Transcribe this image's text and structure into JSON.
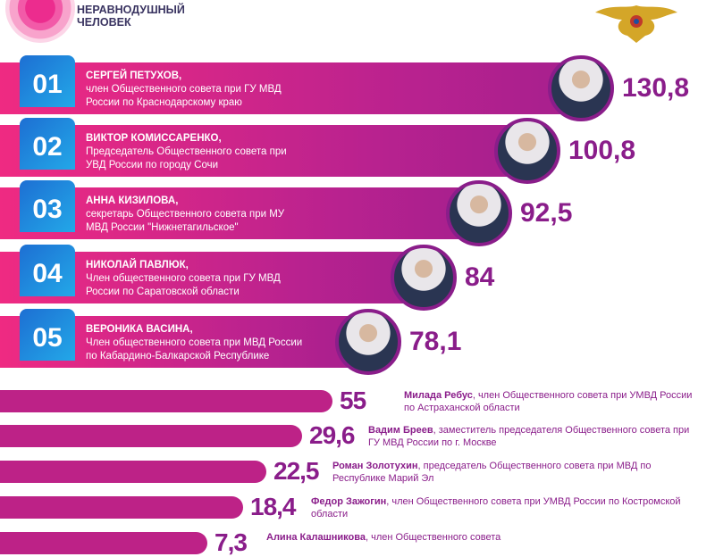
{
  "brand": {
    "line1": "НЕРАВНОДУШНЫЙ",
    "line2": "ЧЕЛОВЕК"
  },
  "colors": {
    "bar": "#bd2287",
    "value": "#8a1d8a",
    "number_box": "#1d8fe0",
    "brand_text": "#3a3461"
  },
  "chart_data": {
    "type": "bar",
    "orientation": "horizontal",
    "top": [
      {
        "rank": "01",
        "name": "СЕРГЕЙ ПЕТУХОВ,",
        "line1": "член Общественного совета при ГУ МВД",
        "line2": "России по Краснодарскому краю",
        "value": 130.8,
        "label": "130,8"
      },
      {
        "rank": "02",
        "name": "ВИКТОР КОМИССАРЕНКО,",
        "line1": "Председатель Общественного совета при",
        "line2": "УВД России по городу Сочи",
        "value": 100.8,
        "label": "100,8"
      },
      {
        "rank": "03",
        "name": "АННА КИЗИЛОВА,",
        "line1": "секретарь Общественного совета при МУ",
        "line2": "МВД России \"Нижнетагильское\"",
        "value": 92.5,
        "label": "92,5"
      },
      {
        "rank": "04",
        "name": "НИКОЛАЙ ПАВЛЮК,",
        "line1": "Член общественного совета при ГУ МВД",
        "line2": "России по Саратовской области",
        "value": 84,
        "label": "84"
      },
      {
        "rank": "05",
        "name": "ВЕРОНИКА ВАСИНА,",
        "line1": "Член общественного совета при МВД России",
        "line2": "по Кабардино-Балкарской Республике",
        "value": 78.1,
        "label": "78,1"
      }
    ],
    "rest": [
      {
        "name": "Милада Ребус",
        "desc": ", член Общественного совета при УМВД России по Астраханской области",
        "value": 55,
        "label": "55"
      },
      {
        "name": "Вадим Бреев",
        "desc": ", заместитель председателя Общественного совета при ГУ МВД России по г. Москве",
        "value": 29.6,
        "label": "29,6"
      },
      {
        "name": "Роман Золотухин",
        "desc": ", председатель Общественного совета при МВД по Республике Марий Эл",
        "value": 22.5,
        "label": "22,5"
      },
      {
        "name": "Федор Зажогин",
        "desc": ", член Общественного совета при УМВД России по Костромской области",
        "value": 18.4,
        "label": "18,4"
      },
      {
        "name": "Алина Калашникова",
        "desc": ", член Общественного совета",
        "label": "7,3"
      }
    ]
  }
}
